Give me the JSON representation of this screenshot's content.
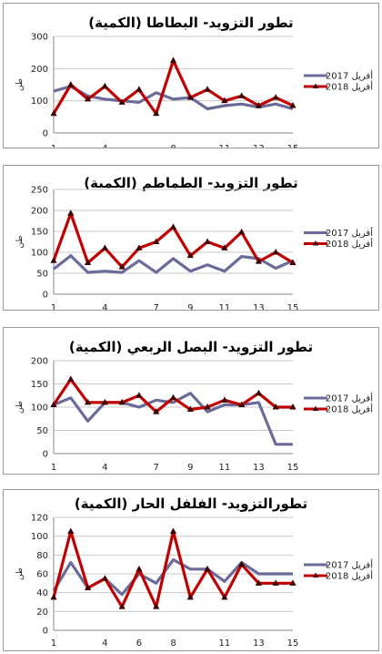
{
  "chart_data": [
    {
      "type": "line",
      "title": "تطور التزويد- البطاطا (الكمية)",
      "ylabel": "طن",
      "ylim": [
        0,
        300
      ],
      "yticks": [
        0,
        100,
        200,
        300
      ],
      "xticks": [
        1,
        4,
        8,
        11,
        13,
        15
      ],
      "x": [
        1,
        2,
        3,
        4,
        5,
        6,
        7,
        8,
        9,
        10,
        11,
        12,
        13,
        14,
        15
      ],
      "grid": true,
      "legend_position": "right",
      "series": [
        {
          "name": "أفريل 2017",
          "color": "#6b6b9a",
          "values": [
            130,
            145,
            115,
            105,
            100,
            95,
            125,
            105,
            110,
            75,
            85,
            90,
            80,
            90,
            75
          ]
        },
        {
          "name": "أفريل 2018",
          "color": "#c00000",
          "values": [
            60,
            150,
            105,
            145,
            95,
            135,
            60,
            225,
            110,
            135,
            100,
            115,
            85,
            110,
            85
          ]
        }
      ]
    },
    {
      "type": "line",
      "title": "تطور التزويد- الطماطم (الكمية)",
      "ylabel": "طن",
      "ylim": [
        0,
        250
      ],
      "yticks": [
        0,
        50,
        100,
        150,
        200,
        250
      ],
      "xticks": [
        1,
        4,
        7,
        9,
        11,
        13,
        15
      ],
      "x": [
        1,
        2,
        3,
        4,
        5,
        6,
        7,
        8,
        9,
        10,
        11,
        12,
        13,
        14,
        15
      ],
      "grid": true,
      "legend_position": "right",
      "series": [
        {
          "name": "أفريل 2017",
          "color": "#6b6b9a",
          "values": [
            60,
            92,
            52,
            55,
            52,
            80,
            52,
            85,
            55,
            70,
            55,
            90,
            85,
            62,
            80
          ]
        },
        {
          "name": "أفريل 2018",
          "color": "#c00000",
          "values": [
            80,
            193,
            75,
            110,
            65,
            110,
            125,
            160,
            92,
            125,
            110,
            148,
            78,
            100,
            75
          ]
        }
      ]
    },
    {
      "type": "line",
      "title": "تطور التزويد- البصل الربعي (الكمية)",
      "ylabel": "طن",
      "ylim": [
        0,
        200
      ],
      "yticks": [
        0,
        50,
        100,
        150,
        200
      ],
      "xticks": [
        1,
        4,
        7,
        9,
        11,
        13,
        15
      ],
      "x": [
        1,
        2,
        3,
        4,
        5,
        6,
        7,
        8,
        9,
        10,
        11,
        12,
        13,
        14,
        15
      ],
      "grid": true,
      "legend_position": "right",
      "series": [
        {
          "name": "أفريل 2017",
          "color": "#6b6b9a",
          "values": [
            105,
            120,
            70,
            110,
            110,
            100,
            115,
            110,
            130,
            90,
            105,
            105,
            110,
            20,
            20
          ]
        },
        {
          "name": "أفريل 2018",
          "color": "#c00000",
          "values": [
            105,
            160,
            110,
            110,
            110,
            125,
            90,
            120,
            95,
            100,
            115,
            105,
            130,
            100,
            100
          ]
        }
      ]
    },
    {
      "type": "line",
      "title": "تطورالتزويد- الفلفل الحار (الكمية)",
      "ylabel": "طن",
      "ylim": [
        0,
        120
      ],
      "yticks": [
        0,
        20,
        40,
        60,
        80,
        100,
        120
      ],
      "xticks": [
        1,
        4,
        6,
        8,
        11,
        13,
        15
      ],
      "x": [
        1,
        2,
        3,
        4,
        5,
        6,
        7,
        8,
        9,
        10,
        11,
        12,
        13,
        14,
        15
      ],
      "grid": true,
      "legend_position": "right",
      "series": [
        {
          "name": "أفريل 2017",
          "color": "#6b6b9a",
          "values": [
            42,
            72,
            45,
            55,
            38,
            60,
            50,
            75,
            65,
            65,
            52,
            72,
            60,
            60,
            60
          ]
        },
        {
          "name": "أفريل 2018",
          "color": "#c00000",
          "values": [
            35,
            105,
            45,
            55,
            25,
            65,
            25,
            105,
            35,
            65,
            35,
            70,
            50,
            50,
            50
          ]
        }
      ]
    }
  ]
}
